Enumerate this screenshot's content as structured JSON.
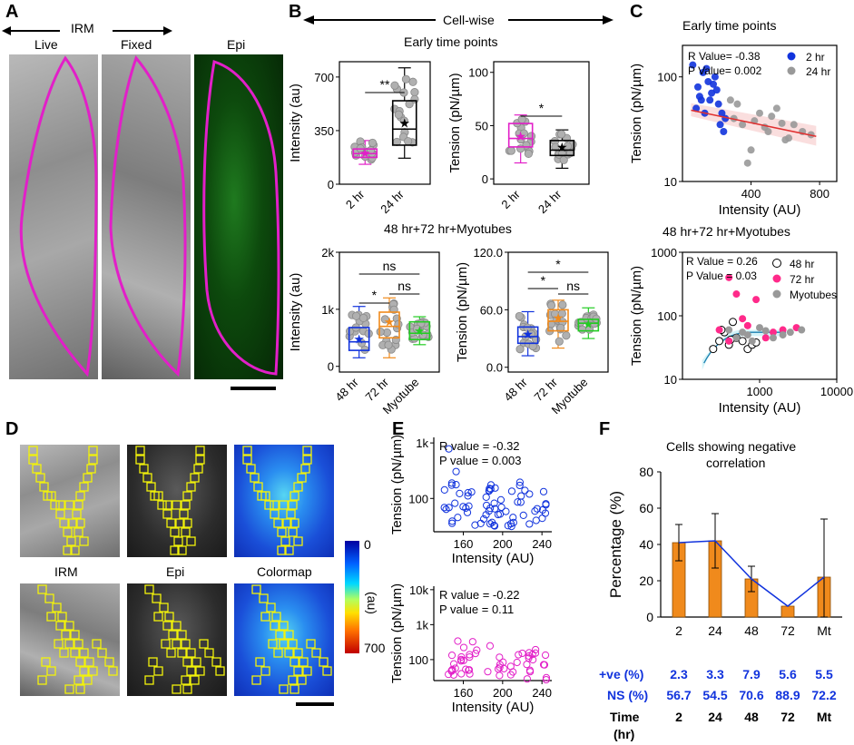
{
  "panelA": {
    "letter": "A",
    "header": "IRM",
    "labels": [
      "Live",
      "Fixed",
      "Epi"
    ]
  },
  "panelB": {
    "letter": "B",
    "header": "Cell-wise",
    "early_title": "Early time points",
    "late_title": "48 hr+72 hr+Myotubes"
  },
  "panelC": {
    "letter": "C",
    "early_title": "Early time points",
    "late_title": "48 hr+72 hr+Myotubes",
    "early_stats": [
      "R Value= -0.38",
      "P Value= 0.002"
    ],
    "late_stats": [
      "R Value = 0.26",
      "P Value = 0.03"
    ],
    "early_legend": [
      "2 hr",
      "24 hr"
    ],
    "late_legend": [
      "48 hr",
      "72 hr",
      "Myotubes"
    ]
  },
  "panelD": {
    "letter": "D",
    "labels": [
      "IRM",
      "Epi",
      "Colormap"
    ],
    "colorbar_min": "0",
    "colorbar_max": "700",
    "colorbar_unit": "(au)"
  },
  "panelE": {
    "letter": "E",
    "top_stats": [
      "R value = -0.32",
      "P value =  0.003"
    ],
    "bottom_stats": [
      "R value = -0.22",
      "P value =  0.11"
    ]
  },
  "panelF": {
    "letter": "F",
    "title_line1": "Cells showing negative",
    "title_line2": "correlation",
    "row_labels": [
      "+ve (%)",
      "NS (%)",
      "Time",
      "(hr)"
    ],
    "pos_values": [
      "2.3",
      "3.3",
      "7.9",
      "5.6",
      "5.5"
    ],
    "ns_values": [
      "56.7",
      "54.5",
      "70.6",
      "88.9",
      "72.2"
    ],
    "time_values": [
      "2",
      "24",
      "48",
      "72",
      "Mt"
    ]
  },
  "colors": {
    "magenta": "#e21fc8",
    "blue": "#1133dd",
    "orange": "#f08a1c",
    "green": "#22cc22",
    "pink": "#ff2a8a"
  },
  "chart_data": [
    {
      "id": "B-early-intensity",
      "type": "box",
      "categories": [
        "2 hr",
        "24 hr"
      ],
      "ylabel": "Intensity (au)",
      "yticks": [
        "0",
        "350",
        "700"
      ],
      "ylim": [
        0,
        800
      ],
      "boxes": [
        {
          "min": 130,
          "q1": 175,
          "median": 200,
          "q3": 230,
          "max": 285,
          "mean": 205
        },
        {
          "min": 170,
          "q1": 255,
          "median": 360,
          "q3": 545,
          "max": 760,
          "mean": 400
        }
      ],
      "significance": [
        {
          "pair": [
            0,
            1
          ],
          "label": "**"
        }
      ]
    },
    {
      "id": "B-early-tension",
      "type": "box",
      "categories": [
        "2 hr",
        "24 hr"
      ],
      "ylabel": "Tension (pN/µm)",
      "yticks": [
        "0",
        "50",
        "100"
      ],
      "ylim": [
        -5,
        110
      ],
      "boxes": [
        {
          "min": 15,
          "q1": 30,
          "median": 38,
          "q3": 52,
          "max": 60,
          "mean": 40
        },
        {
          "min": 10,
          "q1": 22,
          "median": 27,
          "q3": 36,
          "max": 46,
          "mean": 30
        }
      ],
      "significance": [
        {
          "pair": [
            0,
            1
          ],
          "label": "*"
        }
      ]
    },
    {
      "id": "B-late-intensity",
      "type": "box",
      "categories": [
        "48 hr",
        "72 hr",
        "Myotube"
      ],
      "ylabel": "Intensity (au)",
      "yticks": [
        "0",
        "1k",
        "2k"
      ],
      "ylim": [
        -100,
        2000
      ],
      "boxes": [
        {
          "min": 150,
          "q1": 280,
          "median": 430,
          "q3": 680,
          "max": 1050,
          "mean": 480
        },
        {
          "min": 150,
          "q1": 500,
          "median": 700,
          "q3": 950,
          "max": 1200,
          "mean": 780
        },
        {
          "min": 380,
          "q1": 470,
          "median": 580,
          "q3": 780,
          "max": 870,
          "mean": 620
        }
      ],
      "significance": [
        {
          "pair": [
            0,
            2
          ],
          "label": "ns"
        },
        {
          "pair": [
            0,
            1
          ],
          "label": "*"
        },
        {
          "pair": [
            1,
            2
          ],
          "label": "ns"
        }
      ]
    },
    {
      "id": "B-late-tension",
      "type": "box",
      "categories": [
        "48 hr",
        "72 hr",
        "Myotube"
      ],
      "ylabel": "Tension (pN/µm)",
      "yticks": [
        "0.0",
        "60.0",
        "120.0"
      ],
      "ylim": [
        -5,
        120
      ],
      "boxes": [
        {
          "min": 12,
          "q1": 25,
          "median": 32,
          "q3": 42,
          "max": 58,
          "mean": 35
        },
        {
          "min": 20,
          "q1": 38,
          "median": 48,
          "q3": 60,
          "max": 70,
          "mean": 52
        },
        {
          "min": 30,
          "q1": 38,
          "median": 46,
          "q3": 50,
          "max": 62,
          "mean": 45
        }
      ],
      "significance": [
        {
          "pair": [
            0,
            2
          ],
          "label": "*"
        },
        {
          "pair": [
            0,
            1
          ],
          "label": "*"
        },
        {
          "pair": [
            1,
            2
          ],
          "label": "ns"
        }
      ]
    },
    {
      "id": "C-early",
      "type": "scatter",
      "xlabel": "Intensity (AU)",
      "ylabel": "Tension (pN/µm)",
      "xticks": [
        "400",
        "800"
      ],
      "yticks": [
        "10",
        "100"
      ],
      "ylog": true,
      "series": [
        {
          "name": "2 hr",
          "color": "#1133dd",
          "x": [
            60,
            90,
            110,
            120,
            150,
            170,
            190,
            210,
            230,
            250,
            80,
            140,
            200,
            100,
            180,
            220,
            160,
            130,
            240
          ],
          "y": [
            130,
            80,
            60,
            110,
            90,
            70,
            100,
            55,
            45,
            40,
            50,
            120,
            75,
            65,
            85,
            35,
            60,
            45,
            30
          ]
        },
        {
          "name": "24 hr",
          "color": "#999999",
          "x": [
            300,
            350,
            400,
            450,
            500,
            550,
            600,
            650,
            700,
            750,
            320,
            420,
            520,
            620,
            380,
            480,
            580,
            280
          ],
          "y": [
            40,
            35,
            20,
            45,
            30,
            50,
            25,
            35,
            30,
            28,
            55,
            38,
            42,
            26,
            15,
            33,
            36,
            60
          ]
        }
      ],
      "fit": {
        "x": [
          50,
          780
        ],
        "y": [
          48,
          27
        ]
      }
    },
    {
      "id": "C-late",
      "type": "scatter",
      "xlabel": "Intensity (AU)",
      "ylabel": "Tension (pN/µm)",
      "xticks": [
        "1000",
        "10000"
      ],
      "yticks": [
        "10",
        "100",
        "1000"
      ],
      "xlog": true,
      "ylog": true,
      "series": [
        {
          "name": "48 hr",
          "color": "#000000",
          "open": true,
          "x": [
            250,
            300,
            350,
            400,
            450,
            500,
            600,
            700,
            800,
            900,
            320,
            420
          ],
          "y": [
            30,
            40,
            55,
            35,
            80,
            45,
            40,
            30,
            35,
            38,
            60,
            42
          ]
        },
        {
          "name": "72 hr",
          "color": "#ff2a8a",
          "x": [
            300,
            400,
            500,
            700,
            900,
            1200,
            1500,
            2000,
            3000,
            400,
            600
          ],
          "y": [
            60,
            400,
            220,
            70,
            180,
            45,
            55,
            60,
            65,
            40,
            90
          ]
        },
        {
          "name": "Myotubes",
          "color": "#999999",
          "x": [
            400,
            500,
            600,
            700,
            800,
            1000,
            1200,
            1500,
            2000,
            2500,
            3500
          ],
          "y": [
            60,
            45,
            55,
            50,
            40,
            65,
            58,
            45,
            50,
            55,
            60
          ]
        }
      ]
    },
    {
      "id": "E-top",
      "type": "scatter",
      "xlabel": "Intensity (AU)",
      "ylabel": "Tension (pN/µm)",
      "xticks": [
        "160",
        "200",
        "240"
      ],
      "yticks": [
        "100",
        "1k"
      ],
      "ylog": true,
      "color": "#1133dd"
    },
    {
      "id": "E-bottom",
      "type": "scatter",
      "xlabel": "Intensity (AU)",
      "ylabel": "Tension (pN/µm)",
      "xticks": [
        "160",
        "200",
        "240"
      ],
      "yticks": [
        "100",
        "1k",
        "10k"
      ],
      "ylog": true,
      "color": "#e21fc8"
    },
    {
      "id": "F",
      "type": "bar",
      "title": "Cells showing negative correlation",
      "categories": [
        "2",
        "24",
        "48",
        "72",
        "Mt"
      ],
      "values": [
        41,
        42,
        21,
        6,
        22
      ],
      "errors": [
        10,
        15,
        7,
        0,
        32
      ],
      "ylabel": "Percentage (%)",
      "yticks": [
        "0",
        "20",
        "40",
        "60",
        "80"
      ],
      "ylim": [
        0,
        80
      ],
      "bar_color": "#f08a1c"
    }
  ]
}
